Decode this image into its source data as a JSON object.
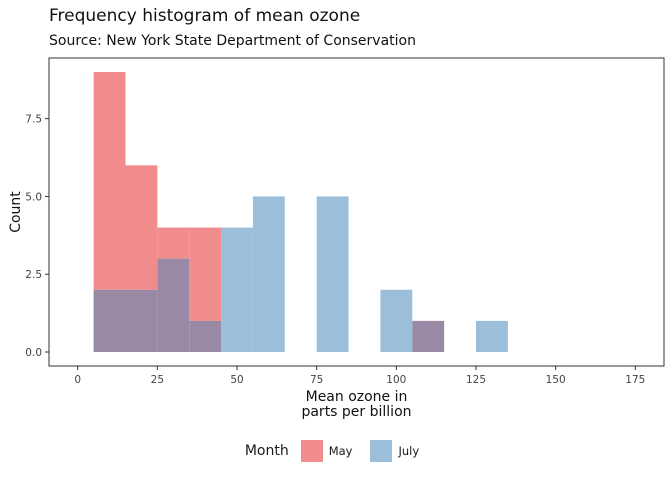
{
  "chart_data": {
    "type": "bar",
    "histogram": true,
    "title": "Frequency histogram of mean ozone",
    "subtitle": "Source: New York State Department of Conservation",
    "xlabel_lines": [
      "Mean ozone in",
      "parts per billion"
    ],
    "ylabel": "Count",
    "xlim": [
      -9,
      184
    ],
    "ylim": [
      -0.45,
      9.45
    ],
    "x_ticks": [
      0,
      25,
      50,
      75,
      100,
      125,
      150,
      175
    ],
    "x_tick_labels": [
      "0",
      "25",
      "50",
      "75",
      "100",
      "125",
      "150",
      "175"
    ],
    "y_ticks": [
      0,
      2.5,
      5,
      7.5
    ],
    "y_tick_labels": [
      "0.0",
      "2.5",
      "5.0",
      "7.5"
    ],
    "grid": false,
    "legend_position": "bottom",
    "legend_title": "Month",
    "overlap_color": "#9A89A4",
    "series": [
      {
        "name": "May",
        "color": "#F08C8C",
        "bins": [
          {
            "x0": 5,
            "x1": 15,
            "count": 9
          },
          {
            "x0": 15,
            "x1": 25,
            "count": 6
          },
          {
            "x0": 25,
            "x1": 35,
            "count": 4
          },
          {
            "x0": 35,
            "x1": 45,
            "count": 4
          },
          {
            "x0": 105,
            "x1": 115,
            "count": 1
          }
        ]
      },
      {
        "name": "July",
        "color": "#9BBFDB",
        "bins": [
          {
            "x0": 5,
            "x1": 15,
            "count": 2
          },
          {
            "x0": 15,
            "x1": 25,
            "count": 2
          },
          {
            "x0": 25,
            "x1": 35,
            "count": 3
          },
          {
            "x0": 35,
            "x1": 45,
            "count": 1
          },
          {
            "x0": 45,
            "x1": 55,
            "count": 4
          },
          {
            "x0": 55,
            "x1": 65,
            "count": 5
          },
          {
            "x0": 75,
            "x1": 85,
            "count": 5
          },
          {
            "x0": 95,
            "x1": 105,
            "count": 2
          },
          {
            "x0": 105,
            "x1": 115,
            "count": 1
          },
          {
            "x0": 125,
            "x1": 135,
            "count": 1
          }
        ]
      }
    ]
  }
}
